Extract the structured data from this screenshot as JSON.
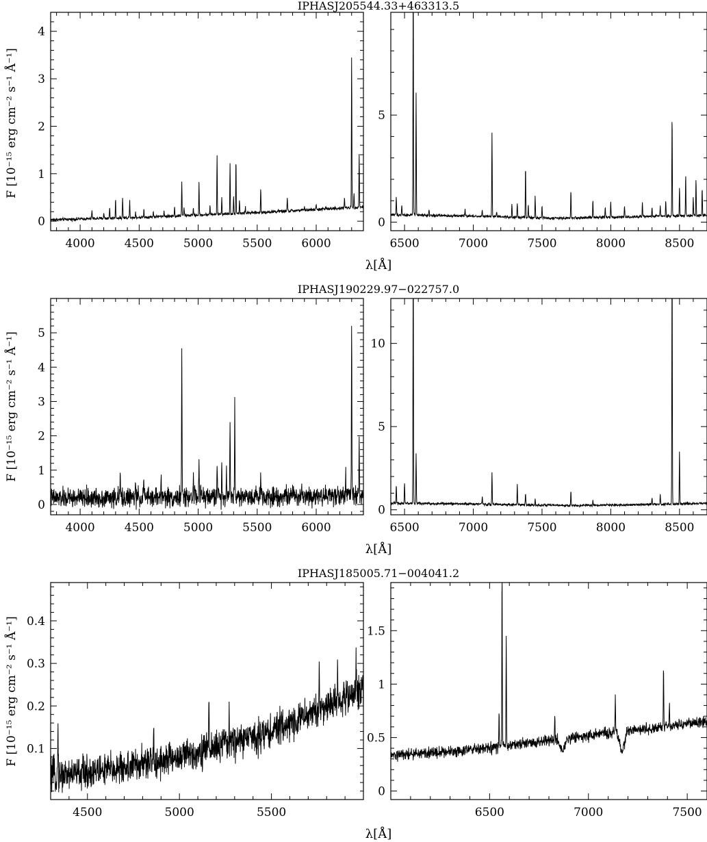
{
  "figure": {
    "ylabel": "F [10⁻¹⁵ erg cm⁻² s⁻¹ Å⁻¹]",
    "xlabel": "λ[Å]"
  },
  "chart_data": [
    {
      "type": "line",
      "title": "IPHASJ205544.33+463313.5",
      "panels": [
        {
          "xlim": [
            3750,
            6400
          ],
          "ylim": [
            -0.2,
            4.4
          ],
          "xticks": [
            4000,
            4500,
            5000,
            5500,
            6000
          ],
          "xtick_labels": [
            "4000",
            "4500",
            "5000",
            "5500",
            "6000"
          ],
          "yticks": [
            0,
            1,
            2,
            3,
            4
          ],
          "ytick_labels": [
            "0",
            "1",
            "2",
            "3",
            "4"
          ],
          "continuum": [
            [
              3750,
              0.03
            ],
            [
              4500,
              0.08
            ],
            [
              5500,
              0.18
            ],
            [
              6400,
              0.3
            ]
          ],
          "noise": 0.025,
          "lines": [
            [
              4100,
              0.25
            ],
            [
              4200,
              0.18
            ],
            [
              4250,
              0.3
            ],
            [
              4300,
              0.45
            ],
            [
              4360,
              0.5
            ],
            [
              4420,
              0.45
            ],
            [
              4470,
              0.2
            ],
            [
              4540,
              0.25
            ],
            [
              4620,
              0.2
            ],
            [
              4710,
              0.22
            ],
            [
              4800,
              0.3
            ],
            [
              4861,
              0.85
            ],
            [
              4880,
              0.3
            ],
            [
              4959,
              0.3
            ],
            [
              5007,
              0.8
            ],
            [
              5100,
              0.35
            ],
            [
              5160,
              1.38
            ],
            [
              5200,
              0.5
            ],
            [
              5270,
              1.2
            ],
            [
              5300,
              0.5
            ],
            [
              5320,
              1.3
            ],
            [
              5350,
              0.45
            ],
            [
              5400,
              0.3
            ],
            [
              5530,
              0.7
            ],
            [
              5680,
              0.25
            ],
            [
              5755,
              0.5
            ],
            [
              5900,
              0.3
            ],
            [
              6000,
              0.35
            ],
            [
              6080,
              0.3
            ],
            [
              6160,
              0.3
            ],
            [
              6240,
              0.5
            ],
            [
              6300,
              3.48
            ],
            [
              6320,
              0.6
            ],
            [
              6364,
              1.42
            ]
          ]
        },
        {
          "xlim": [
            6400,
            8700
          ],
          "ylim": [
            -0.4,
            9.8
          ],
          "xticks": [
            6500,
            7000,
            7500,
            8000,
            8500
          ],
          "xtick_labels": [
            "6500",
            "7000",
            "7500",
            "8000",
            "8500"
          ],
          "yticks": [
            0,
            5
          ],
          "ytick_labels": [
            "0",
            "5"
          ],
          "continuum": [
            [
              6400,
              0.35
            ],
            [
              7000,
              0.28
            ],
            [
              7600,
              0.18
            ],
            [
              8700,
              0.32
            ]
          ],
          "noise": 0.05,
          "lines": [
            [
              6440,
              1.2
            ],
            [
              6480,
              0.8
            ],
            [
              6563,
              12.0
            ],
            [
              6584,
              6.0
            ],
            [
              6678,
              0.6
            ],
            [
              6940,
              0.6
            ],
            [
              7065,
              0.6
            ],
            [
              7136,
              4.2
            ],
            [
              7170,
              0.5
            ],
            [
              7281,
              0.8
            ],
            [
              7320,
              0.9
            ],
            [
              7380,
              2.6
            ],
            [
              7400,
              0.8
            ],
            [
              7450,
              1.2
            ],
            [
              7500,
              0.8
            ],
            [
              7710,
              1.5
            ],
            [
              7870,
              1.0
            ],
            [
              7960,
              0.7
            ],
            [
              8000,
              1.0
            ],
            [
              8100,
              0.8
            ],
            [
              8230,
              0.9
            ],
            [
              8300,
              0.7
            ],
            [
              8360,
              0.8
            ],
            [
              8400,
              1.0
            ],
            [
              8446,
              5.0
            ],
            [
              8500,
              1.6
            ],
            [
              8545,
              2.2
            ],
            [
              8600,
              1.2
            ],
            [
              8620,
              2.0
            ],
            [
              8665,
              1.6
            ]
          ]
        }
      ]
    },
    {
      "type": "line",
      "title": "IPHASJ190229.97−022757.0",
      "panels": [
        {
          "xlim": [
            3750,
            6400
          ],
          "ylim": [
            -0.3,
            6.0
          ],
          "xticks": [
            4000,
            4500,
            5000,
            5500,
            6000
          ],
          "xtick_labels": [
            "4000",
            "4500",
            "5000",
            "5500",
            "6000"
          ],
          "yticks": [
            0,
            1,
            2,
            3,
            4,
            5
          ],
          "ytick_labels": [
            "0",
            "1",
            "2",
            "3",
            "4",
            "5"
          ],
          "continuum": [
            [
              3750,
              0.18
            ],
            [
              5000,
              0.22
            ],
            [
              6400,
              0.28
            ]
          ],
          "noise": 0.22,
          "lines": [
            [
              4340,
              0.9
            ],
            [
              4470,
              0.6
            ],
            [
              4540,
              0.8
            ],
            [
              4686,
              0.9
            ],
            [
              4861,
              4.7
            ],
            [
              4959,
              1.1
            ],
            [
              5007,
              1.3
            ],
            [
              5160,
              1.4
            ],
            [
              5200,
              1.2
            ],
            [
              5240,
              1.2
            ],
            [
              5270,
              2.4
            ],
            [
              5310,
              3.0
            ],
            [
              5530,
              0.9
            ],
            [
              5876,
              0.6
            ],
            [
              6250,
              0.9
            ],
            [
              6300,
              5.3
            ],
            [
              6364,
              1.9
            ]
          ]
        },
        {
          "xlim": [
            6400,
            8700
          ],
          "ylim": [
            -0.3,
            12.7
          ],
          "xticks": [
            6500,
            7000,
            7500,
            8000,
            8500
          ],
          "xtick_labels": [
            "6500",
            "7000",
            "7500",
            "8000",
            "8500"
          ],
          "yticks": [
            0,
            5,
            10
          ],
          "ytick_labels": [
            "0",
            "5",
            "10"
          ],
          "continuum": [
            [
              6400,
              0.4
            ],
            [
              7000,
              0.35
            ],
            [
              7700,
              0.25
            ],
            [
              8500,
              0.35
            ],
            [
              8700,
              0.4
            ]
          ],
          "noise": 0.06,
          "lines": [
            [
              6440,
              1.5
            ],
            [
              6500,
              1.7
            ],
            [
              6563,
              16.0
            ],
            [
              6584,
              3.4
            ],
            [
              7065,
              0.8
            ],
            [
              7136,
              2.2
            ],
            [
              7320,
              1.5
            ],
            [
              7380,
              1.0
            ],
            [
              7450,
              0.7
            ],
            [
              7710,
              1.2
            ],
            [
              7870,
              0.6
            ],
            [
              8300,
              0.7
            ],
            [
              8360,
              1.0
            ],
            [
              8446,
              16.0
            ],
            [
              8500,
              3.5
            ]
          ]
        }
      ]
    },
    {
      "type": "line",
      "title": "IPHASJ185005.71−004041.2",
      "panels": [
        {
          "xlim": [
            4300,
            6000
          ],
          "ylim": [
            -0.02,
            0.49
          ],
          "xticks": [
            4500,
            5000,
            5500
          ],
          "xtick_labels": [
            "4500",
            "5000",
            "5500"
          ],
          "yticks": [
            0.1,
            0.2,
            0.3,
            0.4
          ],
          "ytick_labels": [
            "0.1",
            "0.2",
            "0.3",
            "0.4"
          ],
          "continuum": [
            [
              4300,
              0.035
            ],
            [
              4700,
              0.055
            ],
            [
              5000,
              0.08
            ],
            [
              5500,
              0.14
            ],
            [
              6000,
              0.24
            ]
          ],
          "noise": 0.03,
          "lines": [
            [
              4340,
              0.16
            ],
            [
              4860,
              0.15
            ],
            [
              5160,
              0.24
            ],
            [
              5270,
              0.2
            ],
            [
              5760,
              0.3
            ],
            [
              5860,
              0.28
            ],
            [
              5960,
              0.3
            ]
          ]
        },
        {
          "xlim": [
            6000,
            7600
          ],
          "ylim": [
            -0.08,
            1.95
          ],
          "xticks": [
            6500,
            7000,
            7500
          ],
          "xtick_labels": [
            "6500",
            "7000",
            "7500"
          ],
          "yticks": [
            0,
            0.5,
            1,
            1.5
          ],
          "ytick_labels": [
            "0",
            "0.5",
            "1",
            "1.5"
          ],
          "continuum": [
            [
              6000,
              0.33
            ],
            [
              6500,
              0.4
            ],
            [
              7000,
              0.52
            ],
            [
              7600,
              0.65
            ]
          ],
          "noise": 0.04,
          "lines": [
            [
              6548,
              0.75
            ],
            [
              6563,
              2.1
            ],
            [
              6584,
              1.45
            ],
            [
              6830,
              0.72
            ],
            [
              7136,
              0.88
            ],
            [
              7380,
              1.2
            ],
            [
              7410,
              0.82
            ]
          ],
          "dips": [
            [
              6870,
              0.12
            ],
            [
              7170,
              0.18
            ]
          ]
        }
      ]
    }
  ]
}
